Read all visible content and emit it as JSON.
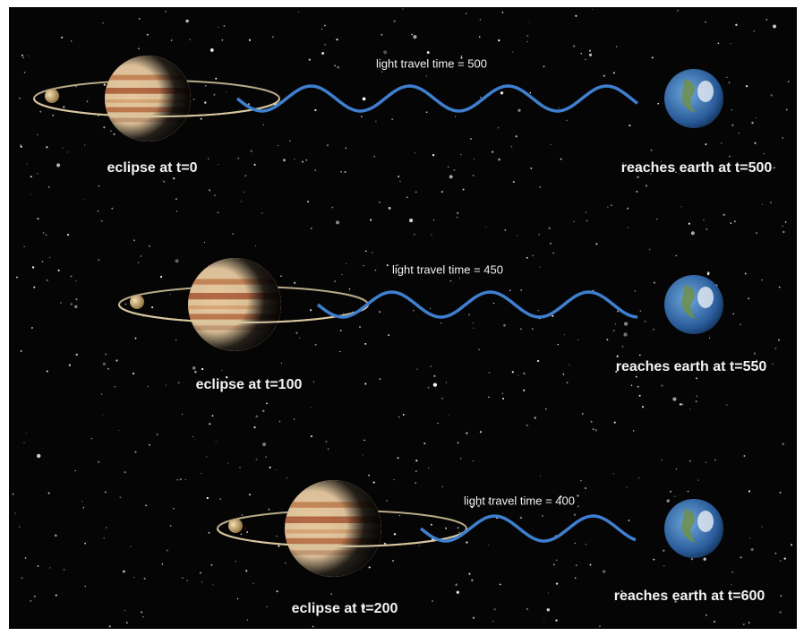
{
  "rows": [
    {
      "travel_label": "light travel time = 500",
      "eclipse_label": "eclipse at t=0",
      "arrival_label": "reaches earth at t=500"
    },
    {
      "travel_label": "light travel time = 450",
      "eclipse_label": "eclipse at t=100",
      "arrival_label": "reaches earth at t=550"
    },
    {
      "travel_label": "light travel time = 400",
      "eclipse_label": "eclipse at t=200",
      "arrival_label": "reaches earth at t=600"
    }
  ]
}
